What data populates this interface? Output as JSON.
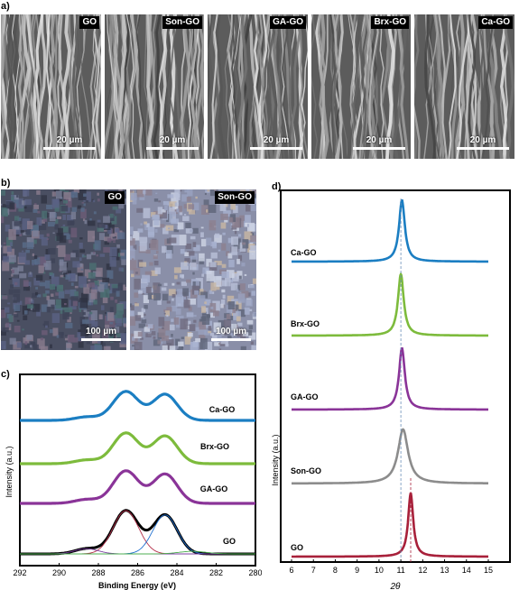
{
  "panels": {
    "a": "a)",
    "b": "b)",
    "c": "c)",
    "d": "d)"
  },
  "sem_images": [
    {
      "tag": "GO",
      "scale": "20 µm"
    },
    {
      "tag": "Son-GO",
      "scale": "20 µm"
    },
    {
      "tag": "GA-GO",
      "scale": "20 µm"
    },
    {
      "tag": "Brx-GO",
      "scale": "20 µm"
    },
    {
      "tag": "Ca-GO",
      "scale": "20 µm"
    }
  ],
  "optical_images": [
    {
      "tag": "GO",
      "scale": "100 µm"
    },
    {
      "tag": "Son-GO",
      "scale": "100 µm"
    }
  ],
  "colors": {
    "GO": "#a8203a",
    "Son-GO": "#8c8c8c",
    "GA-GO": "#8a3498",
    "Brx-GO": "#7dbb3c",
    "Ca-GO": "#1b7ec2"
  },
  "chart_data": [
    {
      "type": "line",
      "panel": "c",
      "xlabel": "Binding Energy (eV)",
      "ylabel": "Intensity (a.u.)",
      "xlim": [
        292,
        280
      ],
      "x_ticks": [
        "292",
        "290",
        "288",
        "286",
        "284",
        "282",
        "280"
      ],
      "peaks_eV": [
        286.6,
        284.6
      ],
      "series": [
        {
          "name": "Ca-GO",
          "color": "#1b7ec2"
        },
        {
          "name": "Brx-GO",
          "color": "#7dbb3c"
        },
        {
          "name": "GA-GO",
          "color": "#8a3498"
        },
        {
          "name": "GO",
          "color": "#000000"
        }
      ]
    },
    {
      "type": "line",
      "panel": "d",
      "xlabel": "2θ",
      "ylabel": "Intensity (a.u.)",
      "xlim": [
        6,
        15
      ],
      "x_ticks": [
        "6",
        "7",
        "8",
        "9",
        "10",
        "11",
        "12",
        "13",
        "14",
        "15"
      ],
      "series": [
        {
          "name": "Ca-GO",
          "peak": 11.05,
          "color": "#1b7ec2"
        },
        {
          "name": "Brx-GO",
          "peak": 11.0,
          "color": "#7dbb3c"
        },
        {
          "name": "GA-GO",
          "peak": 11.05,
          "color": "#8a3498"
        },
        {
          "name": "Son-GO",
          "peak": 11.1,
          "color": "#8c8c8c"
        },
        {
          "name": "GO",
          "peak": 11.45,
          "color": "#a8203a"
        }
      ]
    }
  ]
}
